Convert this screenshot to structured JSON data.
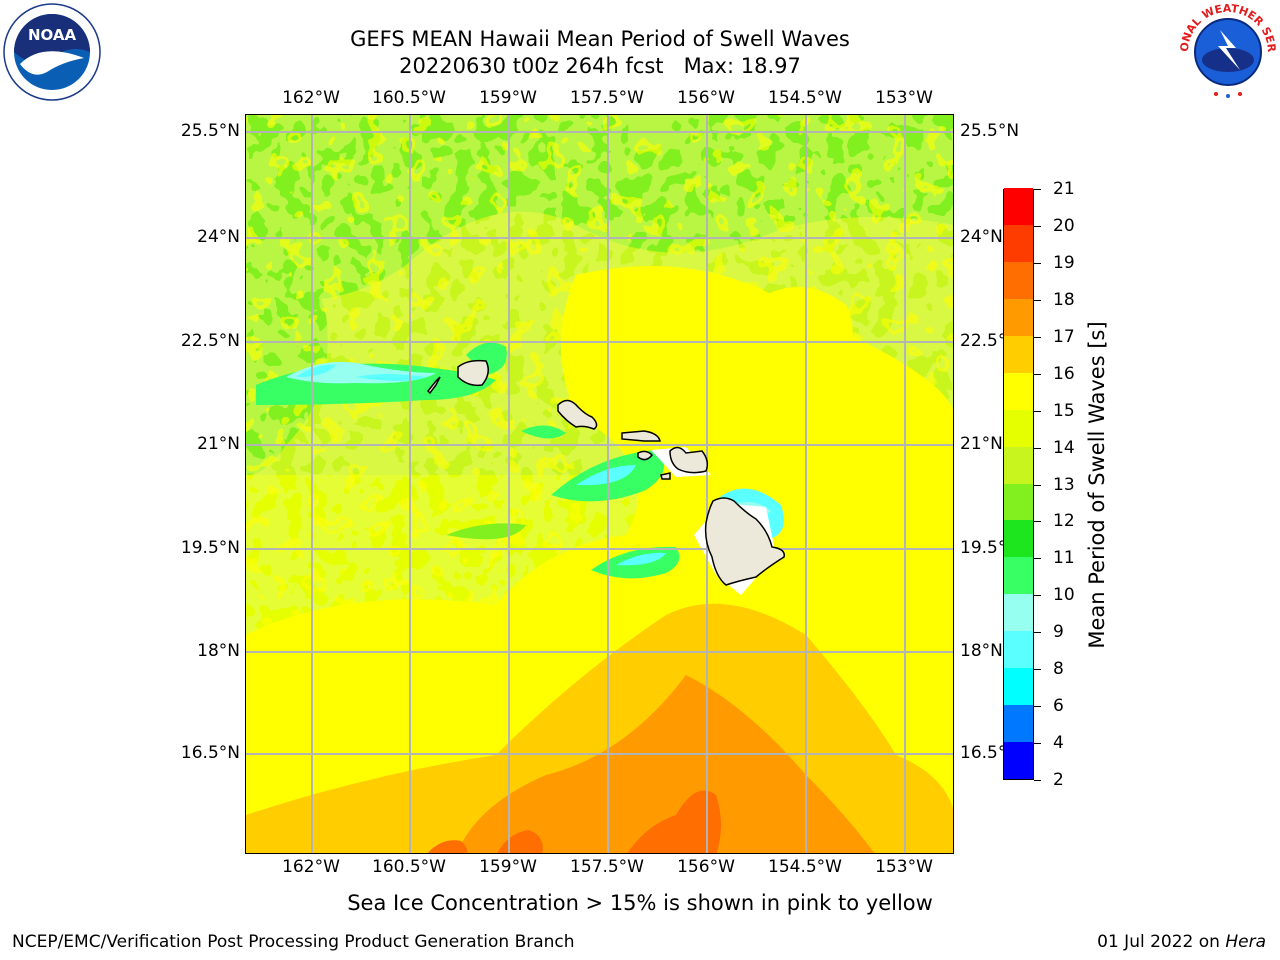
{
  "header": {
    "title_line1": "GEFS MEAN Hawaii Mean Period of Swell Waves",
    "title_line2": "20220630 t00z 264h fcst   Max: 18.97"
  },
  "logos": {
    "left": {
      "name": "noaa-logo",
      "text": "NOAA",
      "ring_text": "NATIONAL OCEANIC AND ATMOSPHERIC ADMINISTRATION · U.S. DEPARTMENT OF COMMERCE"
    },
    "right": {
      "name": "nws-logo",
      "ring_text": "NATIONAL WEATHER SERVICE"
    }
  },
  "map": {
    "lon_ticks": [
      "162°W",
      "160.5°W",
      "159°W",
      "157.5°W",
      "156°W",
      "154.5°W",
      "153°W"
    ],
    "lat_ticks": [
      "25.5°N",
      "24°N",
      "22.5°N",
      "21°N",
      "19.5°N",
      "18°N",
      "16.5°N"
    ],
    "lon_range": [
      -163.0,
      -152.7
    ],
    "lat_range": [
      15.1,
      25.8
    ],
    "gridlines": true,
    "colors": {
      "land": "#ede9da",
      "coast": "#000000",
      "grid": "#b4b4b4"
    }
  },
  "colorbar": {
    "title": "Mean Period of Swell Waves [s]",
    "levels": [
      "2",
      "4",
      "6",
      "8",
      "9",
      "10",
      "11",
      "12",
      "13",
      "14",
      "15",
      "16",
      "17",
      "18",
      "19",
      "20",
      "21"
    ],
    "colors": [
      "#0000ff",
      "#0078ff",
      "#00ffff",
      "#5affff",
      "#96fff0",
      "#37ff64",
      "#1ee61e",
      "#82f01e",
      "#c8f51e",
      "#e6ff00",
      "#ffff00",
      "#ffcd00",
      "#ff9b00",
      "#ff6e00",
      "#ff3c00",
      "#ff0000"
    ]
  },
  "footer": {
    "note": "Sea Ice Concentration > 15% is shown in pink to yellow",
    "left": "NCEP/EMC/Verification Post Processing Product Generation Branch",
    "right_date": "01 Jul 2022 on ",
    "right_host": "Hera"
  }
}
